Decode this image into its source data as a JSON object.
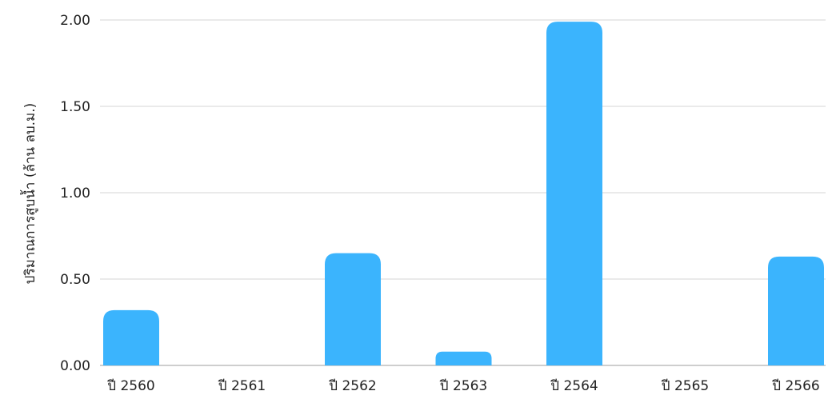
{
  "chart_data": {
    "type": "bar",
    "title": "",
    "xlabel": "",
    "ylabel": "ปริมาณการสูบน้ำ (ล้าน ลบ.ม.)",
    "categories": [
      "ปี 2560",
      "ปี 2561",
      "ปี 2562",
      "ปี 2563",
      "ปี 2564",
      "ปี 2565",
      "ปี 2566"
    ],
    "series": [
      {
        "values": [
          0.32,
          0,
          0.65,
          0.08,
          1.99,
          0,
          0.63
        ]
      }
    ],
    "ylim": [
      0,
      2.0
    ],
    "yticks": [
      "0.00",
      "0.50",
      "1.00",
      "1.50",
      "2.00"
    ],
    "grid": true,
    "legend": "none",
    "bar_color": "#3bb4fd"
  }
}
